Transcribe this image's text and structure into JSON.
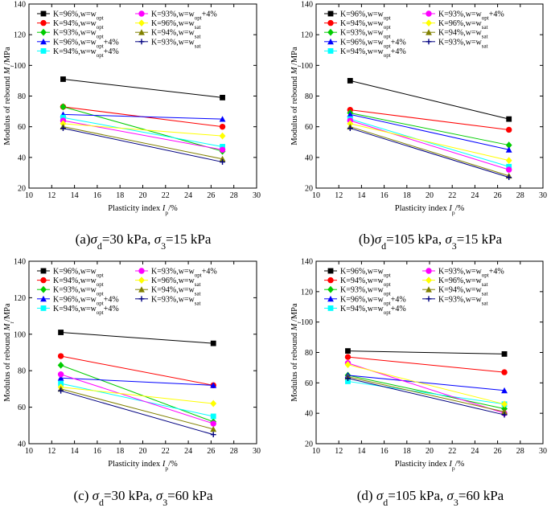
{
  "chart_data": [
    {
      "type": "line",
      "id": "a",
      "caption": "(a)σd=30 kPa, σ3=15 kPa",
      "xlabel": "Plasticity index Ip/%",
      "ylabel": "Modulus of rebound Mr/MPa",
      "xlim": [
        10,
        30
      ],
      "ylim": [
        20,
        140
      ],
      "xticks": [
        10,
        12,
        14,
        16,
        18,
        20,
        22,
        24,
        26,
        28,
        30
      ],
      "yticks": [
        20,
        40,
        60,
        80,
        100,
        120,
        140
      ],
      "legend_columns": 2,
      "series": [
        {
          "name": "K=96%,w=wopt",
          "color": "#000000",
          "marker": "square",
          "x": [
            13,
            27
          ],
          "y": [
            91,
            79
          ]
        },
        {
          "name": "K=94%,w=wopt",
          "color": "#ff0000",
          "marker": "circle",
          "x": [
            13,
            27
          ],
          "y": [
            73,
            60
          ]
        },
        {
          "name": "K=93%,w=wopt",
          "color": "#00cc00",
          "marker": "diamond",
          "x": [
            13,
            27
          ],
          "y": [
            73,
            44
          ]
        },
        {
          "name": "K=96%,w=wopt+4%",
          "color": "#0000ff",
          "marker": "triangle",
          "x": [
            13,
            27
          ],
          "y": [
            68,
            65
          ]
        },
        {
          "name": "K=94%,w=wopt+4%",
          "color": "#00ffff",
          "marker": "square",
          "x": [
            13,
            27
          ],
          "y": [
            66,
            47
          ]
        },
        {
          "name": "K=93%,w=wopt+4%",
          "color": "#ff00ff",
          "marker": "circle",
          "x": [
            13,
            27
          ],
          "y": [
            64,
            45
          ]
        },
        {
          "name": "K=96%,w=wsat",
          "color": "#ffff00",
          "marker": "diamond",
          "x": [
            13,
            27
          ],
          "y": [
            62,
            54
          ]
        },
        {
          "name": "K=94%,w=wsat",
          "color": "#808000",
          "marker": "triangle",
          "x": [
            13,
            27
          ],
          "y": [
            60,
            39
          ]
        },
        {
          "name": "K=93%,w=wsat",
          "color": "#000080",
          "marker": "plus",
          "x": [
            13,
            27
          ],
          "y": [
            59,
            37
          ]
        }
      ]
    },
    {
      "type": "line",
      "id": "b",
      "caption": "(b)σd=105 kPa, σ3=15 kPa",
      "xlabel": "Plasticity index Ip/%",
      "ylabel": "Modulus of rebound Mr/MPa",
      "xlim": [
        10,
        30
      ],
      "ylim": [
        20,
        140
      ],
      "xticks": [
        10,
        12,
        14,
        16,
        18,
        20,
        22,
        24,
        26,
        28,
        30
      ],
      "yticks": [
        20,
        40,
        60,
        80,
        100,
        120,
        140
      ],
      "legend_columns": 2,
      "series": [
        {
          "name": "K=96%,w=wopt",
          "color": "#000000",
          "marker": "square",
          "x": [
            13,
            27
          ],
          "y": [
            90,
            65
          ]
        },
        {
          "name": "K=94%,w=wopt",
          "color": "#ff0000",
          "marker": "circle",
          "x": [
            13,
            27
          ],
          "y": [
            71,
            58
          ]
        },
        {
          "name": "K=93%,w=wopt",
          "color": "#00cc00",
          "marker": "diamond",
          "x": [
            13,
            27
          ],
          "y": [
            69,
            48
          ]
        },
        {
          "name": "K=96%,w=wopt+4%",
          "color": "#0000ff",
          "marker": "triangle",
          "x": [
            13,
            27
          ],
          "y": [
            68,
            45
          ]
        },
        {
          "name": "K=94%,w=wopt+4%",
          "color": "#00ffff",
          "marker": "square",
          "x": [
            13,
            27
          ],
          "y": [
            65,
            34
          ]
        },
        {
          "name": "K=93%,w=wopt+4%",
          "color": "#ff00ff",
          "marker": "circle",
          "x": [
            13,
            27
          ],
          "y": [
            64,
            32
          ]
        },
        {
          "name": "K=96%,w=wsat",
          "color": "#ffff00",
          "marker": "diamond",
          "x": [
            13,
            27
          ],
          "y": [
            62,
            38
          ]
        },
        {
          "name": "K=94%,w=wsat",
          "color": "#808000",
          "marker": "triangle",
          "x": [
            13,
            27
          ],
          "y": [
            60,
            28
          ]
        },
        {
          "name": "K=93%,w=wsat",
          "color": "#000080",
          "marker": "plus",
          "x": [
            13,
            27
          ],
          "y": [
            59,
            27
          ]
        }
      ]
    },
    {
      "type": "line",
      "id": "c",
      "caption": "(c) σd=30 kPa, σ3=60 kPa",
      "xlabel": "Plasticity index Ip/%",
      "ylabel": "Modulus of rebound Mr/MPa",
      "xlim": [
        10,
        30
      ],
      "ylim": [
        40,
        140
      ],
      "xticks": [
        10,
        12,
        14,
        16,
        18,
        20,
        22,
        24,
        26,
        28,
        30
      ],
      "yticks": [
        40,
        60,
        80,
        100,
        120,
        140
      ],
      "legend_columns": 2,
      "series": [
        {
          "name": "K=96%,w=wopt",
          "color": "#000000",
          "marker": "square",
          "x": [
            12.8,
            26.2
          ],
          "y": [
            101,
            95
          ]
        },
        {
          "name": "K=94%,w=wopt",
          "color": "#ff0000",
          "marker": "circle",
          "x": [
            12.8,
            26.2
          ],
          "y": [
            88,
            72
          ]
        },
        {
          "name": "K=93%,w=wopt",
          "color": "#00cc00",
          "marker": "diamond",
          "x": [
            12.8,
            26.2
          ],
          "y": [
            83,
            52
          ]
        },
        {
          "name": "K=96%,w=wopt+4%",
          "color": "#0000ff",
          "marker": "triangle",
          "x": [
            12.8,
            26.2
          ],
          "y": [
            76,
            72
          ]
        },
        {
          "name": "K=94%,w=wopt+4%",
          "color": "#00ffff",
          "marker": "square",
          "x": [
            12.8,
            26.2
          ],
          "y": [
            73,
            55
          ]
        },
        {
          "name": "K=93%,w=wopt+4%",
          "color": "#ff00ff",
          "marker": "circle",
          "x": [
            12.8,
            26.2
          ],
          "y": [
            78,
            51
          ]
        },
        {
          "name": "K=96%,w=wsat",
          "color": "#ffff00",
          "marker": "diamond",
          "x": [
            12.8,
            26.2
          ],
          "y": [
            71,
            62
          ]
        },
        {
          "name": "K=94%,w=wsat",
          "color": "#808000",
          "marker": "triangle",
          "x": [
            12.8,
            26.2
          ],
          "y": [
            70,
            48
          ]
        },
        {
          "name": "K=93%,w=wsat",
          "color": "#000080",
          "marker": "plus",
          "x": [
            12.8,
            26.2
          ],
          "y": [
            69,
            45
          ]
        }
      ]
    },
    {
      "type": "line",
      "id": "d",
      "caption": "(d) σd=105 kPa, σ3=60 kPa",
      "xlabel": "Plasticity index Ip/%",
      "ylabel": "Modulus of rebound Mr/MPa",
      "xlim": [
        10,
        30
      ],
      "ylim": [
        20,
        140
      ],
      "xticks": [
        10,
        12,
        14,
        16,
        18,
        20,
        22,
        24,
        26,
        28,
        30
      ],
      "yticks": [
        20,
        40,
        60,
        80,
        100,
        120,
        140
      ],
      "legend_columns": 2,
      "series": [
        {
          "name": "K=96%,w=wopt",
          "color": "#000000",
          "marker": "square",
          "x": [
            12.8,
            26.6
          ],
          "y": [
            81,
            79
          ]
        },
        {
          "name": "K=94%,w=wopt",
          "color": "#ff0000",
          "marker": "circle",
          "x": [
            12.8,
            26.6
          ],
          "y": [
            77,
            67
          ]
        },
        {
          "name": "K=93%,w=wopt",
          "color": "#00cc00",
          "marker": "diamond",
          "x": [
            12.8,
            26.6
          ],
          "y": [
            65,
            43
          ]
        },
        {
          "name": "K=96%,w=wopt+4%",
          "color": "#0000ff",
          "marker": "triangle",
          "x": [
            12.8,
            26.6
          ],
          "y": [
            65,
            55
          ]
        },
        {
          "name": "K=94%,w=wopt+4%",
          "color": "#00ffff",
          "marker": "square",
          "x": [
            12.8,
            26.6
          ],
          "y": [
            61,
            46
          ]
        },
        {
          "name": "K=93%,w=wopt+4%",
          "color": "#ff00ff",
          "marker": "circle",
          "x": [
            12.8,
            26.6
          ],
          "y": [
            73,
            40
          ]
        },
        {
          "name": "K=96%,w=wsat",
          "color": "#ffff00",
          "marker": "diamond",
          "x": [
            12.8,
            26.6
          ],
          "y": [
            72,
            46
          ]
        },
        {
          "name": "K=94%,w=wsat",
          "color": "#808000",
          "marker": "triangle",
          "x": [
            12.8,
            26.6
          ],
          "y": [
            64,
            41
          ]
        },
        {
          "name": "K=93%,w=wsat",
          "color": "#000080",
          "marker": "plus",
          "x": [
            12.8,
            26.6
          ],
          "y": [
            63,
            39
          ]
        }
      ]
    }
  ]
}
